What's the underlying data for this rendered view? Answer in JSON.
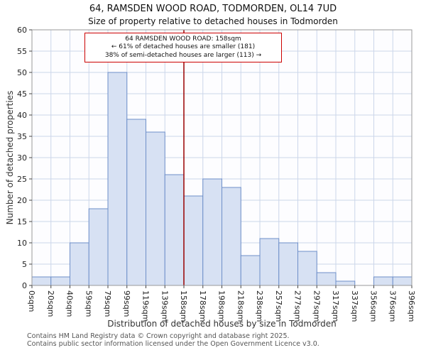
{
  "title": "64, RAMSDEN WOOD ROAD, TODMORDEN, OL14 7UD",
  "subtitle": "Size of property relative to detached houses in Todmorden",
  "ylabel": "Number of detached properties",
  "xlabel": "Distribution of detached houses by size in Todmorden",
  "annotation": {
    "line1": "64 RAMSDEN WOOD ROAD: 158sqm",
    "line2": "← 61% of detached houses are smaller (181)",
    "line3": "38% of semi-detached houses are larger (113) →"
  },
  "footer": {
    "line1": "Contains HM Land Registry data © Crown copyright and database right 2025.",
    "line2": "Contains public sector information licensed under the Open Government Licence v3.0."
  },
  "chart_data": {
    "type": "bar",
    "title": "64, RAMSDEN WOOD ROAD, TODMORDEN, OL14 7UD",
    "subtitle": "Size of property relative to detached houses in Todmorden",
    "xlabel": "Distribution of detached houses by size in Todmorden",
    "ylabel": "Number of detached properties",
    "categories": [
      "0sqm",
      "20sqm",
      "40sqm",
      "59sqm",
      "79sqm",
      "99sqm",
      "119sqm",
      "139sqm",
      "158sqm",
      "178sqm",
      "198sqm",
      "218sqm",
      "238sqm",
      "257sqm",
      "277sqm",
      "297sqm",
      "317sqm",
      "337sqm",
      "356sqm",
      "376sqm",
      "396sqm"
    ],
    "values": [
      2,
      2,
      10,
      18,
      50,
      39,
      36,
      26,
      21,
      25,
      23,
      7,
      11,
      10,
      8,
      3,
      1,
      0,
      2,
      2
    ],
    "ylim": [
      0,
      60
    ],
    "ytick_step": 5,
    "grid": true,
    "marker_label": "158sqm",
    "marker_index": 8,
    "bar_fill": "#d7e1f3",
    "bar_border": "#6e8fc9",
    "marker_color": "#990000",
    "grid_color": "#ccd6ea"
  }
}
